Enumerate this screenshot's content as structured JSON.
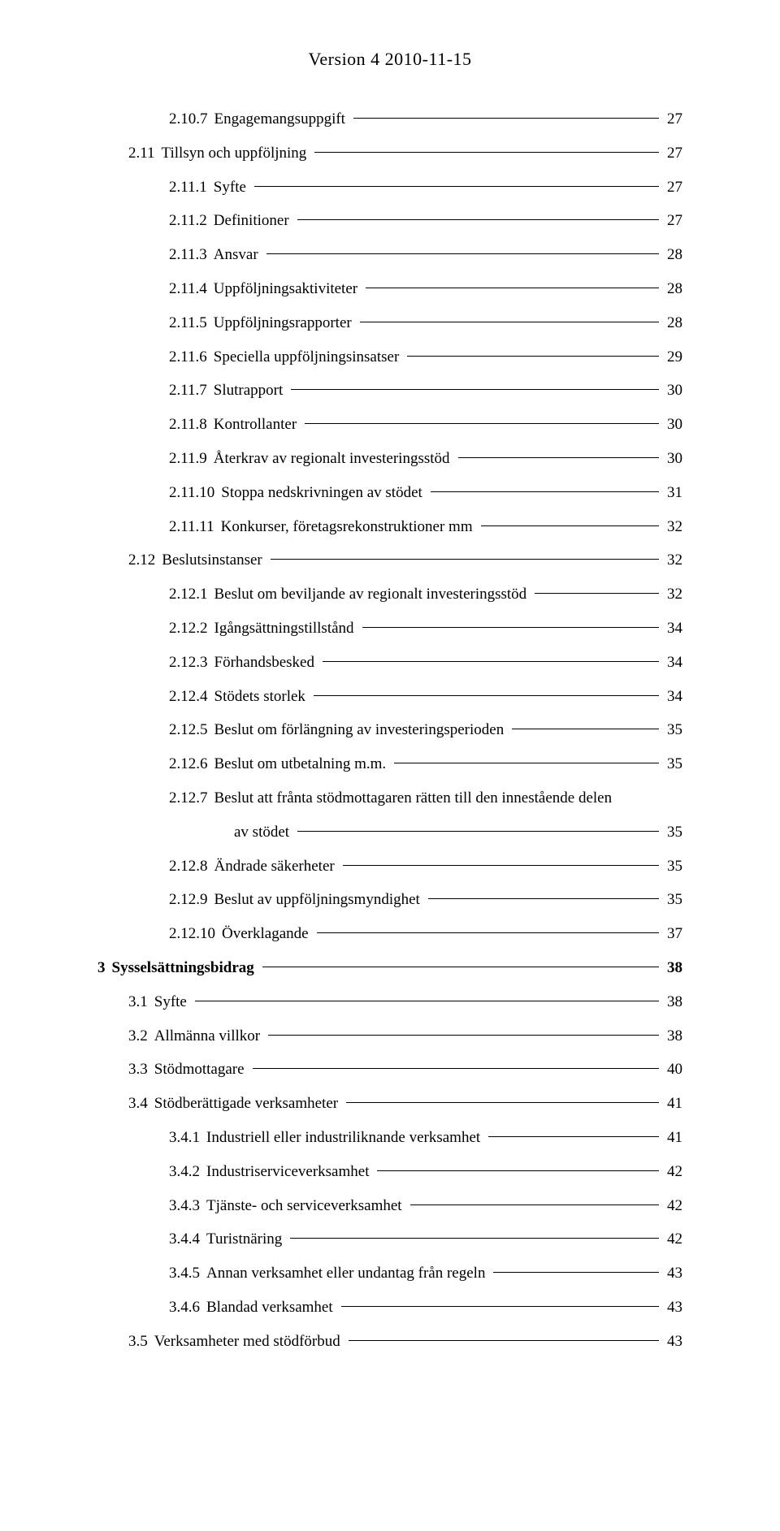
{
  "header": "Version 4 2010-11-15",
  "entries": [
    {
      "num": "2.10.7",
      "label": "Engagemangsuppgift",
      "page": "27",
      "indent": 2,
      "bold": false
    },
    {
      "num": "2.11",
      "label": "Tillsyn och uppföljning",
      "page": "27",
      "indent": 1,
      "bold": false
    },
    {
      "num": "2.11.1",
      "label": "Syfte",
      "page": "27",
      "indent": 2,
      "bold": false
    },
    {
      "num": "2.11.2",
      "label": "Definitioner",
      "page": "27",
      "indent": 2,
      "bold": false
    },
    {
      "num": "2.11.3",
      "label": "Ansvar",
      "page": "28",
      "indent": 2,
      "bold": false
    },
    {
      "num": "2.11.4",
      "label": "Uppföljningsaktiviteter",
      "page": "28",
      "indent": 2,
      "bold": false
    },
    {
      "num": "2.11.5",
      "label": "Uppföljningsrapporter",
      "page": "28",
      "indent": 2,
      "bold": false
    },
    {
      "num": "2.11.6",
      "label": "Speciella uppföljningsinsatser",
      "page": "29",
      "indent": 2,
      "bold": false
    },
    {
      "num": "2.11.7",
      "label": "Slutrapport",
      "page": "30",
      "indent": 2,
      "bold": false
    },
    {
      "num": "2.11.8",
      "label": "Kontrollanter",
      "page": "30",
      "indent": 2,
      "bold": false
    },
    {
      "num": "2.11.9",
      "label": "Återkrav av regionalt investeringsstöd",
      "page": "30",
      "indent": 2,
      "bold": false
    },
    {
      "num": "2.11.10",
      "label": "Stoppa nedskrivningen av stödet",
      "page": "31",
      "indent": 2,
      "bold": false
    },
    {
      "num": "2.11.11",
      "label": "Konkurser, företagsrekonstruktioner mm",
      "page": "32",
      "indent": 2,
      "bold": false
    },
    {
      "num": "2.12",
      "label": "Beslutsinstanser",
      "page": "32",
      "indent": 1,
      "bold": false
    },
    {
      "num": "2.12.1",
      "label": "Beslut om beviljande av regionalt investeringsstöd",
      "page": "32",
      "indent": 2,
      "bold": false
    },
    {
      "num": "2.12.2",
      "label": "Igångsättningstillstånd",
      "page": "34",
      "indent": 2,
      "bold": false
    },
    {
      "num": "2.12.3",
      "label": "Förhandsbesked",
      "page": "34",
      "indent": 2,
      "bold": false
    },
    {
      "num": "2.12.4",
      "label": "Stödets storlek",
      "page": "34",
      "indent": 2,
      "bold": false
    },
    {
      "num": "2.12.5",
      "label": "Beslut om förlängning av investeringsperioden",
      "page": "35",
      "indent": 2,
      "bold": false
    },
    {
      "num": "2.12.6",
      "label": "Beslut om utbetalning m.m.",
      "page": "35",
      "indent": 2,
      "bold": false
    },
    {
      "num": "2.12.7",
      "label": "Beslut att frånta stödmottagaren rätten till den innestående delen",
      "page": "",
      "indent": 2,
      "bold": false,
      "noleader": true
    },
    {
      "num": "",
      "label": "av stödet",
      "page": "35",
      "indent": 0,
      "bold": false,
      "wrap": true
    },
    {
      "num": "2.12.8",
      "label": "Ändrade säkerheter",
      "page": "35",
      "indent": 2,
      "bold": false
    },
    {
      "num": "2.12.9",
      "label": "Beslut av uppföljningsmyndighet",
      "page": "35",
      "indent": 2,
      "bold": false
    },
    {
      "num": "2.12.10",
      "label": "Överklagande",
      "page": "37",
      "indent": 2,
      "bold": false
    },
    {
      "num": "3",
      "label": "Sysselsättningsbidrag",
      "page": "38",
      "indent": 0,
      "bold": true
    },
    {
      "num": "3.1",
      "label": "Syfte",
      "page": "38",
      "indent": 1,
      "bold": false
    },
    {
      "num": "3.2",
      "label": "Allmänna villkor",
      "page": "38",
      "indent": 1,
      "bold": false
    },
    {
      "num": "3.3",
      "label": "Stödmottagare",
      "page": "40",
      "indent": 1,
      "bold": false
    },
    {
      "num": "3.4",
      "label": "Stödberättigade verksamheter",
      "page": "41",
      "indent": 1,
      "bold": false
    },
    {
      "num": "3.4.1",
      "label": "Industriell eller industriliknande verksamhet",
      "page": "41",
      "indent": 2,
      "bold": false
    },
    {
      "num": "3.4.2",
      "label": "Industriserviceverksamhet",
      "page": "42",
      "indent": 2,
      "bold": false
    },
    {
      "num": "3.4.3",
      "label": "Tjänste- och serviceverksamhet",
      "page": "42",
      "indent": 2,
      "bold": false
    },
    {
      "num": "3.4.4",
      "label": "Turistnäring",
      "page": "42",
      "indent": 2,
      "bold": false
    },
    {
      "num": "3.4.5",
      "label": "Annan verksamhet eller undantag från regeln",
      "page": "43",
      "indent": 2,
      "bold": false
    },
    {
      "num": "3.4.6",
      "label": "Blandad verksamhet",
      "page": "43",
      "indent": 2,
      "bold": false
    },
    {
      "num": "3.5",
      "label": "Verksamheter med stödförbud",
      "page": "43",
      "indent": 1,
      "bold": false
    }
  ]
}
